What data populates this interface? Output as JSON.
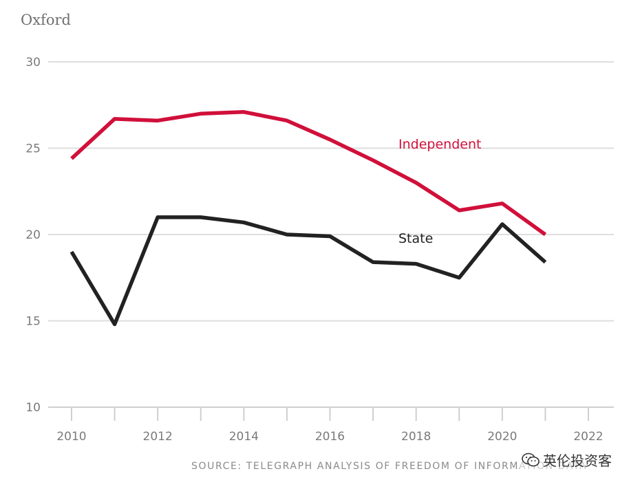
{
  "chart_data": {
    "type": "line",
    "title": "Oxford",
    "x": [
      2010,
      2011,
      2012,
      2013,
      2014,
      2015,
      2016,
      2017,
      2018,
      2019,
      2020,
      2021
    ],
    "xlim": [
      2010,
      2022
    ],
    "x_ticks": [
      2010,
      2012,
      2014,
      2016,
      2018,
      2020,
      2022
    ],
    "ylim": [
      10,
      30
    ],
    "y_ticks": [
      10,
      15,
      20,
      25,
      30
    ],
    "grid": "horizontal",
    "series": [
      {
        "name": "Independent",
        "color": "#d0103a",
        "values": [
          24.4,
          26.7,
          26.6,
          27.0,
          27.1,
          26.6,
          25.5,
          24.3,
          23.0,
          21.4,
          21.8,
          20.0
        ]
      },
      {
        "name": "State",
        "color": "#222222",
        "values": [
          19.0,
          14.8,
          21.0,
          21.0,
          20.7,
          20.0,
          19.9,
          18.4,
          18.3,
          17.5,
          20.6,
          18.4
        ]
      }
    ],
    "source": "SOURCE: TELEGRAPH ANALYSIS OF FREEDOM OF INFORMATION DATA"
  },
  "watermark": {
    "text": "英伦投资客",
    "icon": "wechat-icon"
  }
}
